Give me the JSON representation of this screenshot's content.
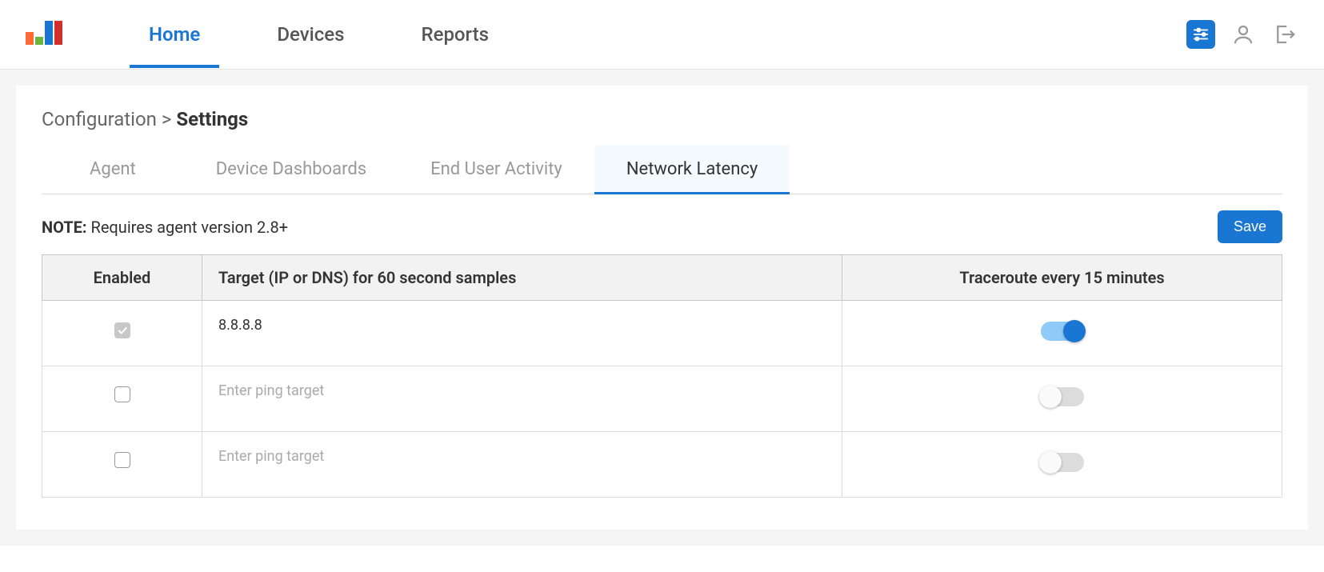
{
  "nav": {
    "items": [
      {
        "label": "Home",
        "active": true
      },
      {
        "label": "Devices",
        "active": false
      },
      {
        "label": "Reports",
        "active": false
      }
    ]
  },
  "breadcrumb": {
    "parent": "Configuration",
    "separator": ">",
    "current": "Settings"
  },
  "tabs": [
    {
      "label": "Agent",
      "active": false
    },
    {
      "label": "Device Dashboards",
      "active": false
    },
    {
      "label": "End User Activity",
      "active": false
    },
    {
      "label": "Network Latency",
      "active": true
    }
  ],
  "note": {
    "prefix": "NOTE:",
    "text": "Requires agent version 2.8+"
  },
  "save_label": "Save",
  "table": {
    "headers": {
      "enabled": "Enabled",
      "target": "Target (IP or DNS) for 60 second samples",
      "traceroute": "Traceroute every 15 minutes"
    },
    "rows": [
      {
        "enabled": true,
        "enabled_locked": true,
        "target_value": "8.8.8.8",
        "target_placeholder": "",
        "traceroute_on": true
      },
      {
        "enabled": false,
        "enabled_locked": false,
        "target_value": "",
        "target_placeholder": "Enter ping target",
        "traceroute_on": false
      },
      {
        "enabled": false,
        "enabled_locked": false,
        "target_value": "",
        "target_placeholder": "Enter ping target",
        "traceroute_on": false
      }
    ]
  },
  "colors": {
    "primary": "#1976d2",
    "primary_light": "#90caf9",
    "bg_page": "#f5f5f5",
    "border": "#dcdcdc",
    "header_bg": "#f2f2f2",
    "muted_text": "#999",
    "tab_active_bg": "#f5faff"
  }
}
